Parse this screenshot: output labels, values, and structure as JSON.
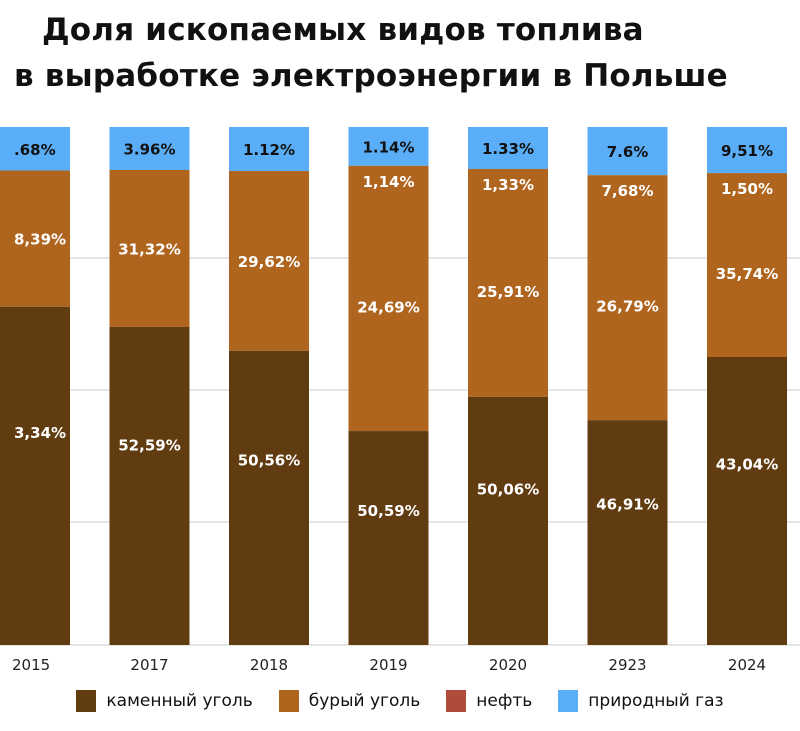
{
  "chart_data": {
    "type": "bar",
    "stacked": true,
    "title": "Доля ископаемых видов топлива в выработке электроэнергии в Польше",
    "title_lines": [
      "Доля ископаемых видов топлива",
      "в выработке электроэнергии в Польше"
    ],
    "categories": [
      "2015",
      "2017",
      "2018",
      "2019",
      "2020",
      "2923",
      "2024"
    ],
    "series": [
      {
        "name": "каменный уголь",
        "color": "#613c10",
        "shares": [
          65.3,
          61.4,
          56.8,
          41.3,
          47.9,
          43.4,
          55.6
        ],
        "labels": [
          "3,34%",
          "52,59%",
          "50,56%",
          "50,59%",
          "50,06%",
          "46,91%",
          "43,04%"
        ]
      },
      {
        "name": "бурый уголь",
        "color": "#b0651f",
        "shares": [
          26.3,
          30.3,
          34.7,
          51.2,
          44.0,
          47.3,
          35.5
        ],
        "labels": [
          "8,39%",
          "31,32%",
          "29,62%",
          "24,69%",
          "25,91%",
          "26,79%",
          "35,74%"
        ],
        "top_labels": [
          "",
          "",
          "",
          "1,14%",
          "1,33%",
          "7,68%",
          "1,50%"
        ]
      },
      {
        "name": "нефть",
        "color": "#b04a3a",
        "shares": [
          0,
          0,
          0,
          0,
          0,
          0,
          0
        ],
        "labels": []
      },
      {
        "name": "природный газ",
        "color": "#5aaef7",
        "shares": [
          8.4,
          8.3,
          8.5,
          7.5,
          8.1,
          9.3,
          8.9
        ],
        "labels": [
          ".68%",
          "3.96%",
          "1.12%",
          "1.14%",
          "1.33%",
          "7.6%",
          "9,51%"
        ]
      }
    ],
    "legend_position": "bottom",
    "grid": true
  }
}
